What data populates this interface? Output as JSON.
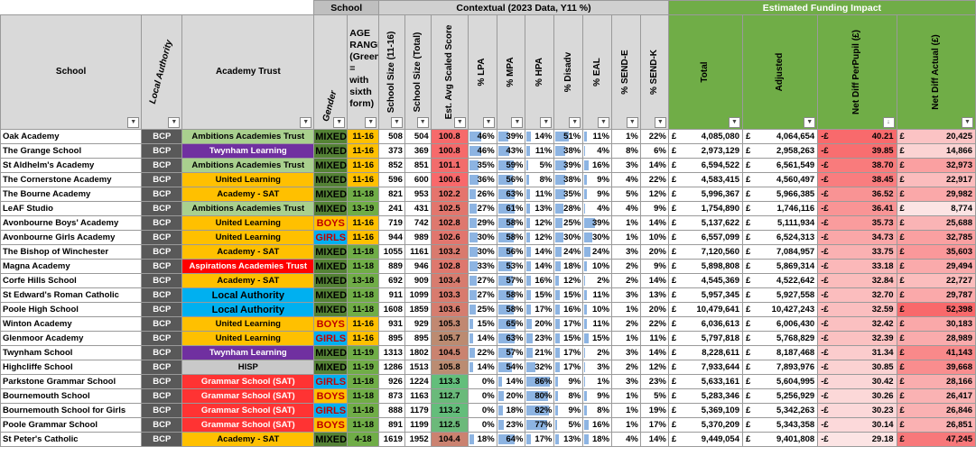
{
  "group_headers": {
    "school": "School",
    "contextual": "Contextual (2023 Data, Y11 %)",
    "funding": "Estimated Funding Impact"
  },
  "columns": {
    "school": "School",
    "la": "Local Authority",
    "trust": "Academy Trust",
    "gender": "Gender",
    "age": "AGE RANGE (Green = with sixth form)",
    "size1116": "School Size (11-16)",
    "sizeTotal": "School Size (Total)",
    "score": "Est. Avg Scaled Score",
    "lpa": "% LPA",
    "mpa": "% MPA",
    "hpa": "% HPA",
    "disadv": "% Disadv",
    "eal": "% EAL",
    "sende": "% SEND-E",
    "sendk": "% SEND-K",
    "total": "Total",
    "adjusted": "Adjusted",
    "netpp": "Net Diff PerPupil (£)",
    "netactual": "Net Diff Actual (£)"
  },
  "colors": {
    "Ambitions Academies Trust": "#a9d08e",
    "Twynham Learning": "#7030a0",
    "United Learning": "#ffc000",
    "Academy - SAT": "#ffc000",
    "Aspirations Academies Trust": "#ff0000",
    "Local Authority": "#00b0f0",
    "HISP": "#c9c9c9",
    "Grammar School (SAT)": "#ff3333",
    "MIXED": "#548235",
    "BOYS": "#ffc000",
    "GIRLS": "#00b0f0",
    "age_11_16": "#ffc000",
    "age_sixth": "#70ad47"
  },
  "rows": [
    {
      "school": "Oak Academy",
      "la": "BCP",
      "trust": "Ambitions Academies Trust",
      "gender": "MIXED",
      "age": "11-16",
      "s1": "508",
      "st": "504",
      "score": "100.8",
      "lpa": "46%",
      "mpa": "39%",
      "hpa": "14%",
      "dis": "51%",
      "eal": "11%",
      "se": "1%",
      "sk": "22%",
      "total": "4,085,080",
      "adj": "4,064,654",
      "pp": "40.21",
      "act": "20,425"
    },
    {
      "school": "The Grange School",
      "la": "BCP",
      "trust": "Twynham Learning",
      "gender": "MIXED",
      "age": "11-16",
      "s1": "373",
      "st": "369",
      "score": "100.8",
      "lpa": "46%",
      "mpa": "43%",
      "hpa": "11%",
      "dis": "38%",
      "eal": "4%",
      "se": "8%",
      "sk": "6%",
      "total": "2,973,129",
      "adj": "2,958,263",
      "pp": "39.85",
      "act": "14,866"
    },
    {
      "school": "St Aldhelm's Academy",
      "la": "BCP",
      "trust": "Ambitions Academies Trust",
      "gender": "MIXED",
      "age": "11-16",
      "s1": "852",
      "st": "851",
      "score": "101.1",
      "lpa": "35%",
      "mpa": "59%",
      "hpa": "5%",
      "dis": "39%",
      "eal": "16%",
      "se": "3%",
      "sk": "14%",
      "total": "6,594,522",
      "adj": "6,561,549",
      "pp": "38.70",
      "act": "32,973"
    },
    {
      "school": "The Cornerstone Academy",
      "la": "BCP",
      "trust": "United Learning",
      "gender": "MIXED",
      "age": "11-16",
      "s1": "596",
      "st": "600",
      "score": "100.6",
      "lpa": "36%",
      "mpa": "56%",
      "hpa": "8%",
      "dis": "38%",
      "eal": "9%",
      "se": "4%",
      "sk": "22%",
      "total": "4,583,415",
      "adj": "4,560,497",
      "pp": "38.45",
      "act": "22,917"
    },
    {
      "school": "The Bourne Academy",
      "la": "BCP",
      "trust": "Academy - SAT",
      "gender": "MIXED",
      "age": "11-18",
      "s1": "821",
      "st": "953",
      "score": "102.2",
      "lpa": "26%",
      "mpa": "63%",
      "hpa": "11%",
      "dis": "35%",
      "eal": "9%",
      "se": "5%",
      "sk": "12%",
      "total": "5,996,367",
      "adj": "5,966,385",
      "pp": "36.52",
      "act": "29,982"
    },
    {
      "school": "LeAF Studio",
      "la": "BCP",
      "trust": "Ambitions Academies Trust",
      "gender": "MIXED",
      "age": "13-19",
      "s1": "241",
      "st": "431",
      "score": "102.5",
      "lpa": "27%",
      "mpa": "61%",
      "hpa": "13%",
      "dis": "28%",
      "eal": "4%",
      "se": "4%",
      "sk": "9%",
      "total": "1,754,890",
      "adj": "1,746,116",
      "pp": "36.41",
      "act": "8,774"
    },
    {
      "school": "Avonbourne Boys' Academy",
      "la": "BCP",
      "trust": "United Learning",
      "gender": "BOYS",
      "age": "11-16",
      "s1": "719",
      "st": "742",
      "score": "102.8",
      "lpa": "29%",
      "mpa": "58%",
      "hpa": "12%",
      "dis": "25%",
      "eal": "39%",
      "se": "1%",
      "sk": "14%",
      "total": "5,137,622",
      "adj": "5,111,934",
      "pp": "35.73",
      "act": "25,688"
    },
    {
      "school": "Avonbourne Girls Academy",
      "la": "BCP",
      "trust": "United Learning",
      "gender": "GIRLS",
      "age": "11-16",
      "s1": "944",
      "st": "989",
      "score": "102.6",
      "lpa": "30%",
      "mpa": "58%",
      "hpa": "12%",
      "dis": "30%",
      "eal": "30%",
      "se": "1%",
      "sk": "10%",
      "total": "6,557,099",
      "adj": "6,524,313",
      "pp": "34.73",
      "act": "32,785"
    },
    {
      "school": "The Bishop of Winchester",
      "la": "BCP",
      "trust": "Academy - SAT",
      "gender": "MIXED",
      "age": "11-18",
      "s1": "1055",
      "st": "1161",
      "score": "103.2",
      "lpa": "30%",
      "mpa": "56%",
      "hpa": "14%",
      "dis": "24%",
      "eal": "24%",
      "se": "3%",
      "sk": "20%",
      "total": "7,120,560",
      "adj": "7,084,957",
      "pp": "33.75",
      "act": "35,603"
    },
    {
      "school": "Magna Academy",
      "la": "BCP",
      "trust": "Aspirations Academies Trust",
      "gender": "MIXED",
      "age": "11-18",
      "s1": "889",
      "st": "946",
      "score": "102.8",
      "lpa": "33%",
      "mpa": "53%",
      "hpa": "14%",
      "dis": "18%",
      "eal": "10%",
      "se": "2%",
      "sk": "9%",
      "total": "5,898,808",
      "adj": "5,869,314",
      "pp": "33.18",
      "act": "29,494"
    },
    {
      "school": "Corfe Hills School",
      "la": "BCP",
      "trust": "Academy - SAT",
      "gender": "MIXED",
      "age": "13-18",
      "s1": "692",
      "st": "909",
      "score": "103.4",
      "lpa": "27%",
      "mpa": "57%",
      "hpa": "16%",
      "dis": "12%",
      "eal": "2%",
      "se": "2%",
      "sk": "14%",
      "total": "4,545,369",
      "adj": "4,522,642",
      "pp": "32.84",
      "act": "22,727"
    },
    {
      "school": "St Edward's Roman Catholic",
      "la": "BCP",
      "trust": "Local Authority",
      "gender": "MIXED",
      "age": "11-18",
      "s1": "911",
      "st": "1099",
      "score": "103.3",
      "lpa": "27%",
      "mpa": "58%",
      "hpa": "15%",
      "dis": "15%",
      "eal": "11%",
      "se": "3%",
      "sk": "13%",
      "total": "5,957,345",
      "adj": "5,927,558",
      "pp": "32.70",
      "act": "29,787"
    },
    {
      "school": "Poole High School",
      "la": "BCP",
      "trust": "Local Authority",
      "gender": "MIXED",
      "age": "11-18",
      "s1": "1608",
      "st": "1859",
      "score": "103.6",
      "lpa": "25%",
      "mpa": "58%",
      "hpa": "17%",
      "dis": "16%",
      "eal": "10%",
      "se": "1%",
      "sk": "20%",
      "total": "10,479,641",
      "adj": "10,427,243",
      "pp": "32.59",
      "act": "52,398"
    },
    {
      "school": "Winton Academy",
      "la": "BCP",
      "trust": "United Learning",
      "gender": "BOYS",
      "age": "11-16",
      "s1": "931",
      "st": "929",
      "score": "105.3",
      "lpa": "15%",
      "mpa": "65%",
      "hpa": "20%",
      "dis": "17%",
      "eal": "11%",
      "se": "2%",
      "sk": "22%",
      "total": "6,036,613",
      "adj": "6,006,430",
      "pp": "32.42",
      "act": "30,183"
    },
    {
      "school": "Glenmoor Academy",
      "la": "BCP",
      "trust": "United Learning",
      "gender": "GIRLS",
      "age": "11-16",
      "s1": "895",
      "st": "895",
      "score": "105.7",
      "lpa": "14%",
      "mpa": "63%",
      "hpa": "23%",
      "dis": "15%",
      "eal": "15%",
      "se": "1%",
      "sk": "11%",
      "total": "5,797,818",
      "adj": "5,768,829",
      "pp": "32.39",
      "act": "28,989"
    },
    {
      "school": "Twynham School",
      "la": "BCP",
      "trust": "Twynham Learning",
      "gender": "MIXED",
      "age": "11-19",
      "s1": "1313",
      "st": "1802",
      "score": "104.5",
      "lpa": "22%",
      "mpa": "57%",
      "hpa": "21%",
      "dis": "17%",
      "eal": "2%",
      "se": "3%",
      "sk": "14%",
      "total": "8,228,611",
      "adj": "8,187,468",
      "pp": "31.34",
      "act": "41,143"
    },
    {
      "school": "Highcliffe School",
      "la": "BCP",
      "trust": "HISP",
      "gender": "MIXED",
      "age": "11-19",
      "s1": "1286",
      "st": "1513",
      "score": "105.8",
      "lpa": "14%",
      "mpa": "54%",
      "hpa": "32%",
      "dis": "17%",
      "eal": "3%",
      "se": "2%",
      "sk": "12%",
      "total": "7,933,644",
      "adj": "7,893,976",
      "pp": "30.85",
      "act": "39,668"
    },
    {
      "school": "Parkstone Grammar School",
      "la": "BCP",
      "trust": "Grammar School (SAT)",
      "gender": "GIRLS",
      "age": "11-18",
      "s1": "926",
      "st": "1224",
      "score": "113.3",
      "lpa": "0%",
      "mpa": "14%",
      "hpa": "86%",
      "dis": "9%",
      "eal": "1%",
      "se": "3%",
      "sk": "23%",
      "total": "5,633,161",
      "adj": "5,604,995",
      "pp": "30.42",
      "act": "28,166"
    },
    {
      "school": "Bournemouth School",
      "la": "BCP",
      "trust": "Grammar School (SAT)",
      "gender": "BOYS",
      "age": "11-18",
      "s1": "873",
      "st": "1163",
      "score": "112.7",
      "lpa": "0%",
      "mpa": "20%",
      "hpa": "80%",
      "dis": "8%",
      "eal": "9%",
      "se": "1%",
      "sk": "5%",
      "total": "5,283,346",
      "adj": "5,256,929",
      "pp": "30.26",
      "act": "26,417"
    },
    {
      "school": "Bournemouth School for Girls",
      "la": "BCP",
      "trust": "Grammar School (SAT)",
      "gender": "GIRLS",
      "age": "11-18",
      "s1": "888",
      "st": "1179",
      "score": "113.2",
      "lpa": "0%",
      "mpa": "18%",
      "hpa": "82%",
      "dis": "9%",
      "eal": "8%",
      "se": "1%",
      "sk": "19%",
      "total": "5,369,109",
      "adj": "5,342,263",
      "pp": "30.23",
      "act": "26,846"
    },
    {
      "school": "Poole Grammar School",
      "la": "BCP",
      "trust": "Grammar School (SAT)",
      "gender": "BOYS",
      "age": "11-18",
      "s1": "891",
      "st": "1199",
      "score": "112.5",
      "lpa": "0%",
      "mpa": "23%",
      "hpa": "77%",
      "dis": "5%",
      "eal": "16%",
      "se": "1%",
      "sk": "17%",
      "total": "5,370,209",
      "adj": "5,343,358",
      "pp": "30.14",
      "act": "26,851"
    },
    {
      "school": "St Peter's Catholic",
      "la": "BCP",
      "trust": "Academy - SAT",
      "gender": "MIXED",
      "age": "4-18",
      "s1": "1619",
      "st": "1952",
      "score": "104.4",
      "lpa": "18%",
      "mpa": "64%",
      "hpa": "17%",
      "dis": "13%",
      "eal": "18%",
      "se": "4%",
      "sk": "14%",
      "total": "9,449,054",
      "adj": "9,401,808",
      "pp": "29.18",
      "act": "47,245"
    }
  ]
}
